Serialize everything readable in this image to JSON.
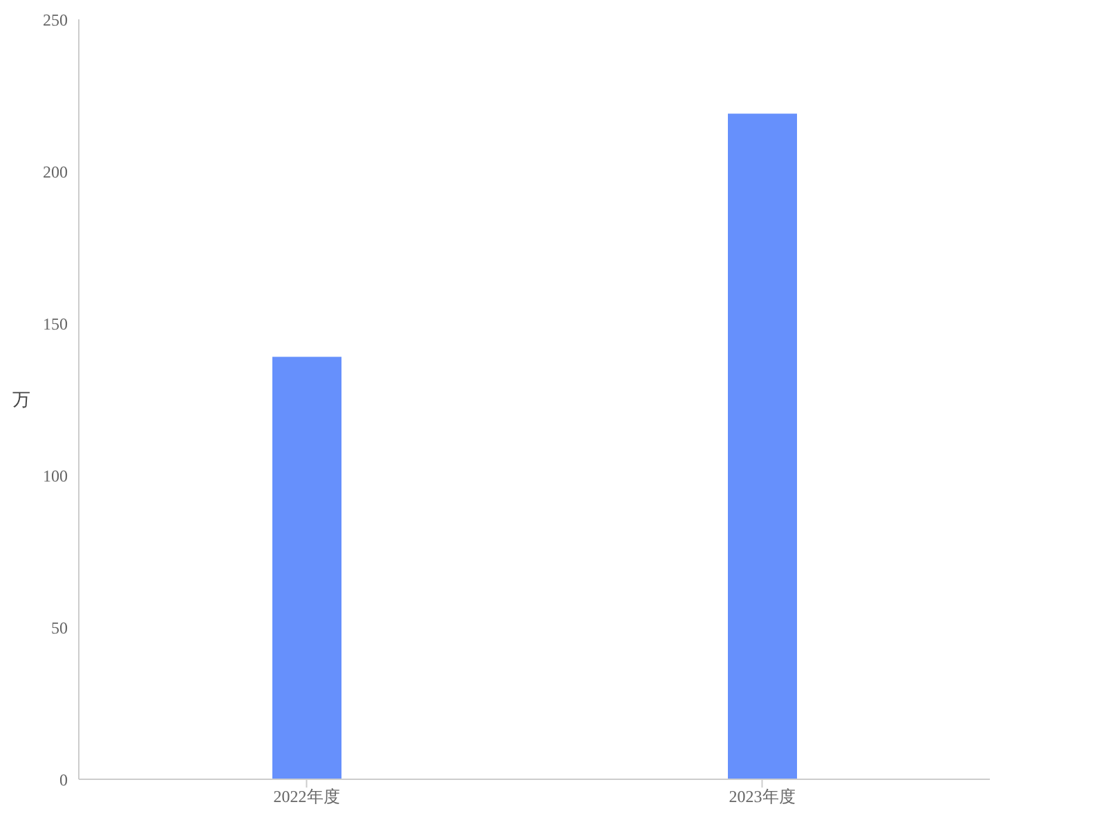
{
  "chart_data": {
    "type": "bar",
    "ylabel": "万",
    "categories": [
      "2022年度",
      "2023年度"
    ],
    "values": [
      139,
      219
    ],
    "color": "#6690fc",
    "ylim": [
      0,
      250
    ],
    "yticks": [
      0,
      50,
      100,
      150,
      200,
      250
    ],
    "grid": false
  }
}
